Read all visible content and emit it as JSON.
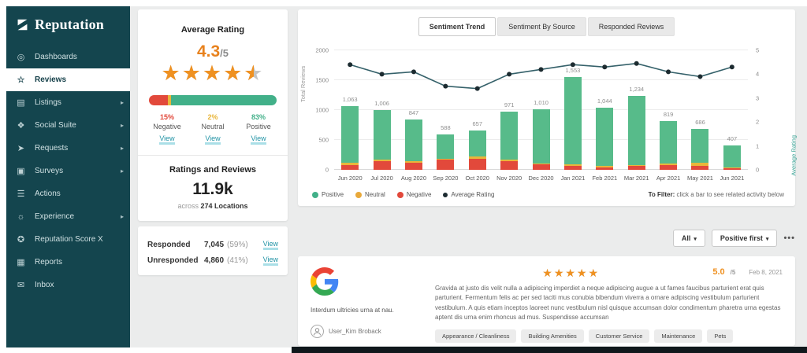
{
  "sidebar": {
    "logo_text": "Reputation",
    "icons": {
      "dashboards": "◎",
      "reviews": "☆",
      "listings": "▤",
      "social": "❖",
      "requests": "➤",
      "surveys": "▣",
      "actions": "☰",
      "experience": "☼",
      "score": "✪",
      "reports": "▦",
      "inbox": "✉"
    },
    "items": [
      {
        "label": "Dashboards",
        "icon": "dashboards",
        "active": false,
        "chevron": false
      },
      {
        "label": "Reviews",
        "icon": "reviews",
        "active": true,
        "chevron": false
      },
      {
        "label": "Listings",
        "icon": "listings",
        "active": false,
        "chevron": true
      },
      {
        "label": "Social Suite",
        "icon": "social",
        "active": false,
        "chevron": true
      },
      {
        "label": "Requests",
        "icon": "requests",
        "active": false,
        "chevron": true
      },
      {
        "label": "Surveys",
        "icon": "surveys",
        "active": false,
        "chevron": true
      },
      {
        "label": "Actions",
        "icon": "actions",
        "active": false,
        "chevron": false
      },
      {
        "label": "Experience",
        "icon": "experience",
        "active": false,
        "chevron": true
      },
      {
        "label": "Reputation Score X",
        "icon": "score",
        "active": false,
        "chevron": false
      },
      {
        "label": "Reports",
        "icon": "reports",
        "active": false,
        "chevron": false
      },
      {
        "label": "Inbox",
        "icon": "inbox",
        "active": false,
        "chevron": false
      }
    ]
  },
  "summary": {
    "avg_rating_title": "Average Rating",
    "avg_rating_value": "4.3",
    "avg_rating_max": "/5",
    "stars_filled": 4.5,
    "sentiment": [
      {
        "pct": "15%",
        "label": "Negative",
        "link": "View",
        "color": "#e2493b",
        "width": 15
      },
      {
        "pct": "2%",
        "label": "Neutral",
        "link": "View",
        "color": "#e9b63a",
        "width": 2
      },
      {
        "pct": "83%",
        "label": "Positive",
        "link": "View",
        "color": "#42b089",
        "width": 83
      }
    ],
    "ratings_title": "Ratings and Reviews",
    "ratings_value": "11.9k",
    "ratings_sub_prefix": "across",
    "ratings_locations": "274 Locations",
    "responded": {
      "label": "Responded",
      "value": "7,045",
      "pct": "(59%)",
      "link": "View"
    },
    "unresponded": {
      "label": "Unresponded",
      "value": "4,860",
      "pct": "(41%)",
      "link": "View"
    }
  },
  "tabs": [
    {
      "label": "Sentiment Trend",
      "active": true
    },
    {
      "label": "Sentiment By Source",
      "active": false
    },
    {
      "label": "Responded Reviews",
      "active": false
    }
  ],
  "chart_data": {
    "type": "bar",
    "subtype": "stacked bars with average-rating line overlay",
    "categories": [
      "Jun 2020",
      "Jul 2020",
      "Aug 2020",
      "Sep 2020",
      "Oct 2020",
      "Nov 2020",
      "Dec 2020",
      "Jan 2021",
      "Feb 2021",
      "Mar 2021",
      "Apr 2021",
      "May 2021",
      "Jun 2021"
    ],
    "totals": [
      1063,
      1006,
      847,
      588,
      657,
      971,
      1010,
      1553,
      1044,
      1234,
      819,
      686,
      407
    ],
    "total_labels": [
      "1,063",
      "1,006",
      "847",
      "588",
      "657",
      "971",
      "1,010",
      "1,553",
      "1,044",
      "1,234",
      "819",
      "686",
      "407"
    ],
    "series": [
      {
        "name": "Negative",
        "color": "#e2493b",
        "values": [
          85,
          150,
          115,
          170,
          185,
          140,
          90,
          70,
          45,
          60,
          85,
          70,
          25
        ]
      },
      {
        "name": "Neutral",
        "color": "#e9b63a",
        "values": [
          30,
          20,
          35,
          15,
          40,
          25,
          20,
          25,
          15,
          20,
          15,
          45,
          10
        ]
      },
      {
        "name": "Positive",
        "color": "#57bb8a",
        "values": [
          948,
          836,
          697,
          403,
          432,
          806,
          900,
          1458,
          984,
          1154,
          719,
          571,
          372
        ]
      }
    ],
    "line_series": {
      "name": "Average Rating",
      "color": "#35616a",
      "dot_color": "#1c2b30",
      "values": [
        4.4,
        4.0,
        4.1,
        3.5,
        3.4,
        4.0,
        4.2,
        4.4,
        4.3,
        4.45,
        4.1,
        3.9,
        4.3
      ]
    },
    "ylabel_left": "Total Reviews",
    "ylabel_right": "Average Rating",
    "yticks_left": [
      "0",
      "500",
      "1000",
      "1500",
      "2000"
    ],
    "yticks_right": [
      "0",
      "1",
      "2",
      "3",
      "4",
      "5"
    ],
    "ylim_left": [
      0,
      2000
    ],
    "ylim_right": [
      0,
      5
    ],
    "grid": true,
    "legend_position": "bottom-left",
    "legend": [
      {
        "label": "Positive",
        "color": "#42b089",
        "small": false
      },
      {
        "label": "Neutral",
        "color": "#e9a93a",
        "small": false
      },
      {
        "label": "Negative",
        "color": "#e2493b",
        "small": false
      },
      {
        "label": "Average Rating",
        "color": "#1c2b30",
        "small": true
      }
    ]
  },
  "chart_footer": {
    "bold": "To Filter:",
    "rest": " click a bar to see related activity below"
  },
  "toolbar": {
    "filter_label": "All",
    "sort_label": "Positive first",
    "caret": "▾",
    "more": "•••"
  },
  "review": {
    "source_icon": "google-icon",
    "location": "Interdum ultricies urna at nau.",
    "user": "User_Kim Broback",
    "stars_filled": 5,
    "rating_value": "5.0",
    "rating_max": "/5",
    "date": "Feb 8, 2021",
    "body": "Gravida at justo dis velit nulla a adipiscing imperdiet a neque adipiscing augue a ut fames faucibus parturient erat quis parturient. Fermentum felis ac per sed taciti mus conubia bibendum viverra a ornare adipiscing vestibulum parturient vestibulum. A quis etiam inceptos laoreet nunc vestibulum nisl quisque accumsan dolor condimentum pharetra urna egestas aptent dis urna enim rhoncus ad mus. Suspendisse accumsan",
    "tags": [
      "Appearance / Cleanliness",
      "Building Amenities",
      "Customer Service",
      "Maintenance",
      "Pets"
    ]
  }
}
